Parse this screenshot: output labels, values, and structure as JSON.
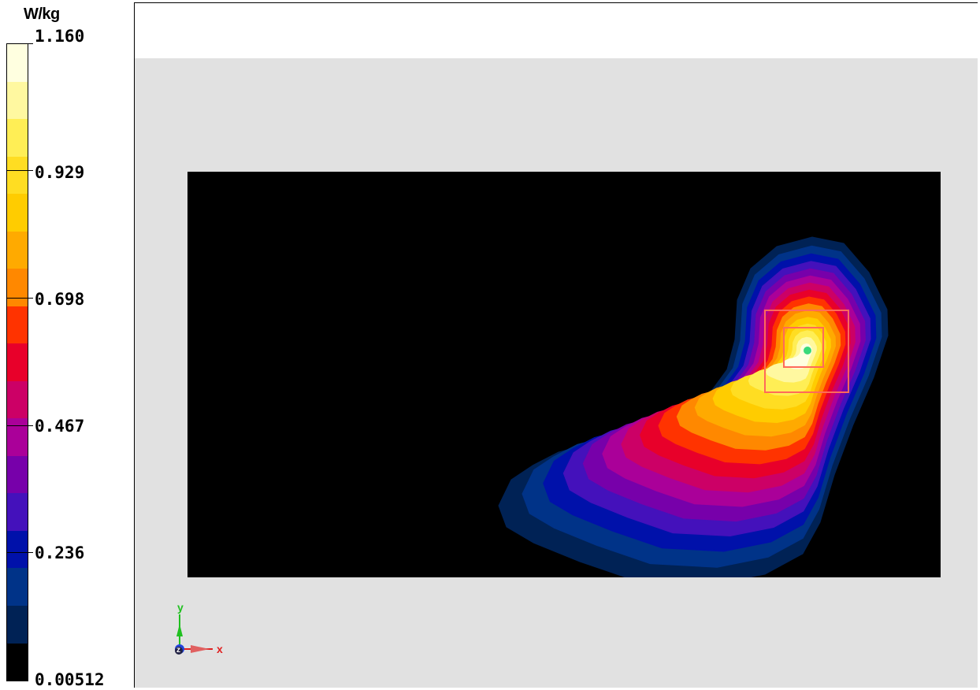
{
  "chart_data": {
    "type": "heatmap",
    "colorbar": {
      "unit": "W/kg",
      "tick_labels": [
        "1.160",
        "0.929",
        "0.698",
        "0.467",
        "0.236",
        "0.00512"
      ],
      "tick_values": [
        1.16,
        0.929,
        0.698,
        0.467,
        0.236,
        0.00512
      ],
      "range": [
        0.00512,
        1.16
      ],
      "colors_top_to_bottom": [
        "#ffffe0",
        "#fff8a0",
        "#ffee55",
        "#ffdd22",
        "#ffcc00",
        "#ffaa00",
        "#ff8800",
        "#ff3300",
        "#e8002a",
        "#cc0066",
        "#aa0099",
        "#7700aa",
        "#4411bb",
        "#0011aa",
        "#003388",
        "#002255",
        "#000000"
      ]
    },
    "peak_marker_color": "#39d97a",
    "box_color": "#ff6a5a",
    "axis_labels": {
      "x": "x",
      "y": "y",
      "z": "z"
    }
  }
}
